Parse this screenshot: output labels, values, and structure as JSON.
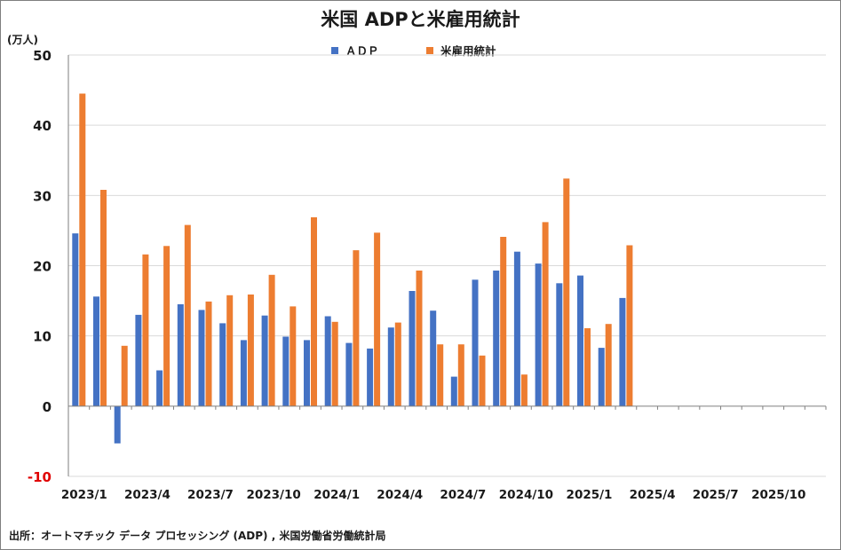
{
  "chart_data": {
    "type": "bar",
    "title": "米国 ADPと米雇用統計",
    "ylabel": "(万人)",
    "source": "出所：オートマチック データ プロセッシング (ADP) , 米国労働省労働統計局",
    "ylim": [
      -10,
      50
    ],
    "y_ticks": [
      {
        "value": 50,
        "label": "50"
      },
      {
        "value": 40,
        "label": "40"
      },
      {
        "value": 30,
        "label": "30"
      },
      {
        "value": 20,
        "label": "20"
      },
      {
        "value": 10,
        "label": "10"
      },
      {
        "value": 0,
        "label": "0"
      },
      {
        "value": -10,
        "label": "-10"
      }
    ],
    "grid": true,
    "legend_position": "top-center",
    "negative_tick_color": "#e00000",
    "categories": [
      "2023/1",
      "2023/2",
      "2023/3",
      "2023/4",
      "2023/5",
      "2023/6",
      "2023/7",
      "2023/8",
      "2023/9",
      "2023/10",
      "2023/11",
      "2023/12",
      "2024/1",
      "2024/2",
      "2024/3",
      "2024/4",
      "2024/5",
      "2024/6",
      "2024/7",
      "2024/8",
      "2024/9",
      "2024/10",
      "2024/11",
      "2024/12",
      "2025/1",
      "2025/2",
      "2025/3",
      "2025/4",
      "2025/5",
      "2025/6",
      "2025/7",
      "2025/8",
      "2025/9",
      "2025/10",
      "2025/11",
      "2025/12"
    ],
    "x_tick_labels": [
      {
        "index": 0,
        "label": "2023/1"
      },
      {
        "index": 3,
        "label": "2023/4"
      },
      {
        "index": 6,
        "label": "2023/7"
      },
      {
        "index": 9,
        "label": "2023/10"
      },
      {
        "index": 12,
        "label": "2024/1"
      },
      {
        "index": 15,
        "label": "2024/4"
      },
      {
        "index": 18,
        "label": "2024/7"
      },
      {
        "index": 21,
        "label": "2024/10"
      },
      {
        "index": 24,
        "label": "2025/1"
      },
      {
        "index": 27,
        "label": "2025/4"
      },
      {
        "index": 30,
        "label": "2025/7"
      },
      {
        "index": 33,
        "label": "2025/10"
      }
    ],
    "series": [
      {
        "name": "ＡＤＰ",
        "color": "#4472c4",
        "values": [
          24.6,
          15.6,
          -5.3,
          13.0,
          5.1,
          14.5,
          13.7,
          11.8,
          9.4,
          12.9,
          9.9,
          9.4,
          12.8,
          9.0,
          8.2,
          11.2,
          16.4,
          13.6,
          4.2,
          18.0,
          19.3,
          22.0,
          20.3,
          17.5,
          18.6,
          8.3,
          15.4,
          null,
          null,
          null,
          null,
          null,
          null,
          null,
          null,
          null
        ]
      },
      {
        "name": "米雇用統計",
        "color": "#ed7d31",
        "values": [
          44.5,
          30.8,
          8.6,
          21.6,
          22.8,
          25.8,
          14.9,
          15.8,
          15.9,
          18.7,
          14.2,
          26.9,
          12.0,
          22.2,
          24.7,
          11.9,
          19.3,
          8.8,
          8.8,
          7.2,
          24.1,
          4.5,
          26.2,
          32.4,
          11.1,
          11.7,
          22.9,
          null,
          null,
          null,
          null,
          null,
          null,
          null,
          null,
          null
        ]
      }
    ]
  }
}
